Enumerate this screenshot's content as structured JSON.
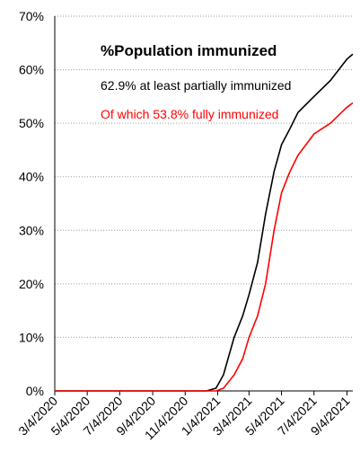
{
  "chart_data": {
    "type": "line",
    "title": "%Population immunized",
    "annotations": [
      {
        "text": "62.9% at least partially immunized",
        "color": "#000000"
      },
      {
        "text": "Of which 53.8% fully immunized",
        "color": "#ff0000"
      }
    ],
    "x": [
      "3/4/2020",
      "12/14/2020",
      "1/1/2021",
      "1/15/2021",
      "2/4/2021",
      "2/20/2021",
      "3/4/2021",
      "3/20/2021",
      "4/4/2021",
      "4/20/2021",
      "5/4/2021",
      "5/20/2021",
      "6/4/2021",
      "7/4/2021",
      "8/4/2021",
      "9/4/2021",
      "9/15/2021"
    ],
    "series": [
      {
        "name": "at least partially immunized",
        "color": "#000000",
        "values": [
          0,
          0,
          0.5,
          3,
          10,
          14,
          18,
          24,
          33,
          41,
          46,
          49,
          52,
          55,
          58,
          62,
          62.9
        ]
      },
      {
        "name": "fully immunized",
        "color": "#ff0000",
        "values": [
          0,
          0,
          0,
          0.5,
          3,
          6,
          10,
          14,
          20,
          30,
          37,
          41,
          44,
          48,
          50,
          53,
          53.8
        ]
      }
    ],
    "xlim": [
      "3/4/2020",
      "9/15/2021"
    ],
    "xticks": [
      "3/4/2020",
      "5/4/2020",
      "7/4/2020",
      "9/4/2020",
      "11/4/2020",
      "1/4/2021",
      "3/4/2021",
      "5/4/2021",
      "7/4/2021",
      "9/4/2021"
    ],
    "ylim": [
      0,
      70
    ],
    "yticks": [
      {
        "value": 0,
        "label": "0%"
      },
      {
        "value": 10,
        "label": "10%"
      },
      {
        "value": 20,
        "label": "20%"
      },
      {
        "value": 30,
        "label": "30%"
      },
      {
        "value": 40,
        "label": "40%"
      },
      {
        "value": 50,
        "label": "50%"
      },
      {
        "value": 60,
        "label": "60%"
      },
      {
        "value": 70,
        "label": "70%"
      }
    ],
    "grid": true
  }
}
